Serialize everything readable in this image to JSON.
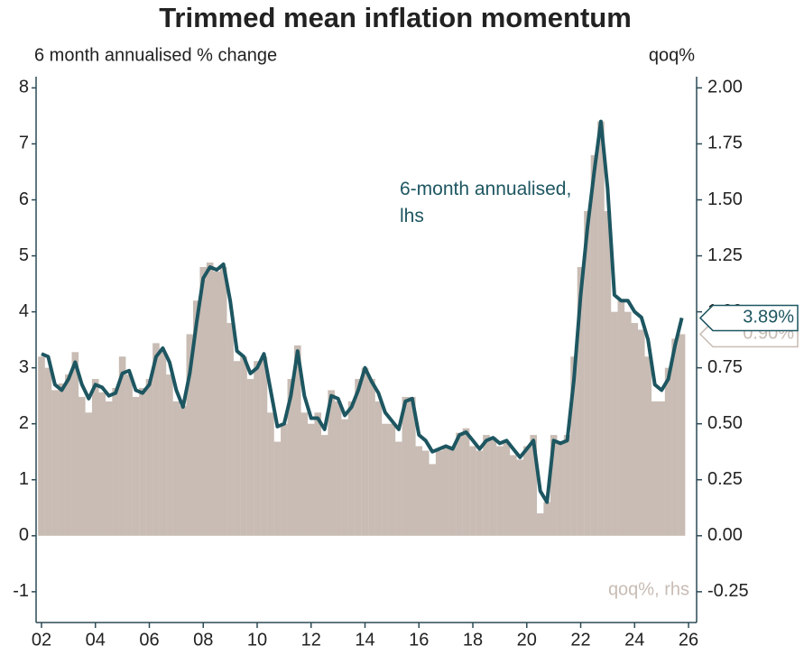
{
  "chart_data": {
    "type": "bar-line",
    "title": "Trimmed mean inflation momentum",
    "ylabel": "6 month annualised % change",
    "y2label": "qoq%",
    "x": [
      2002,
      2002.25,
      2002.5,
      2002.75,
      2003,
      2003.25,
      2003.5,
      2003.75,
      2004,
      2004.25,
      2004.5,
      2004.75,
      2005,
      2005.25,
      2005.5,
      2005.75,
      2006,
      2006.25,
      2006.5,
      2006.75,
      2007,
      2007.25,
      2007.5,
      2007.75,
      2008,
      2008.25,
      2008.5,
      2008.75,
      2009,
      2009.25,
      2009.5,
      2009.75,
      2010,
      2010.25,
      2010.5,
      2010.75,
      2011,
      2011.25,
      2011.5,
      2011.75,
      2012,
      2012.25,
      2012.5,
      2012.75,
      2013,
      2013.25,
      2013.5,
      2013.75,
      2014,
      2014.25,
      2014.5,
      2014.75,
      2015,
      2015.25,
      2015.5,
      2015.75,
      2016,
      2016.25,
      2016.5,
      2016.75,
      2017,
      2017.25,
      2017.5,
      2017.75,
      2018,
      2018.25,
      2018.5,
      2018.75,
      2019,
      2019.25,
      2019.5,
      2019.75,
      2020,
      2020.25,
      2020.5,
      2020.75,
      2021,
      2021.25,
      2021.5,
      2021.75,
      2022,
      2022.25,
      2022.5,
      2022.75,
      2023,
      2023.25,
      2023.5,
      2023.75,
      2024,
      2024.25,
      2024.5,
      2024.75,
      2025,
      2025.25,
      2025.5,
      2025.75
    ],
    "series": [
      {
        "name": "qoq%, rhs",
        "kind": "bar",
        "axis": "y2",
        "color": "#c8bcb4",
        "values": [
          0.8,
          0.75,
          0.65,
          0.68,
          0.72,
          0.82,
          0.62,
          0.55,
          0.7,
          0.64,
          0.6,
          0.66,
          0.8,
          0.72,
          0.62,
          0.66,
          0.7,
          0.86,
          0.82,
          0.72,
          0.6,
          0.58,
          0.9,
          1.05,
          1.2,
          1.22,
          1.18,
          1.2,
          0.95,
          0.78,
          0.8,
          0.7,
          0.78,
          0.8,
          0.55,
          0.42,
          0.5,
          0.7,
          0.85,
          0.55,
          0.5,
          0.55,
          0.45,
          0.65,
          0.6,
          0.52,
          0.6,
          0.7,
          0.75,
          0.7,
          0.6,
          0.5,
          0.5,
          0.42,
          0.62,
          0.62,
          0.4,
          0.38,
          0.32,
          0.38,
          0.4,
          0.4,
          0.46,
          0.48,
          0.4,
          0.38,
          0.45,
          0.44,
          0.4,
          0.42,
          0.36,
          0.34,
          0.4,
          0.45,
          0.1,
          0.15,
          0.45,
          0.42,
          0.45,
          0.8,
          1.2,
          1.45,
          1.7,
          1.85,
          1.45,
          1.0,
          1.05,
          1.0,
          0.95,
          0.92,
          0.8,
          0.6,
          0.6,
          0.75,
          0.88,
          0.9
        ],
        "end_label": {
          "value": 0.9,
          "label": "0.90%"
        }
      },
      {
        "name": "6-month annualised, lhs",
        "kind": "line",
        "axis": "y",
        "color": "#1d5661",
        "values": [
          3.25,
          3.2,
          2.7,
          2.6,
          2.8,
          3.1,
          2.7,
          2.45,
          2.7,
          2.65,
          2.5,
          2.55,
          2.9,
          2.95,
          2.6,
          2.55,
          2.7,
          3.2,
          3.35,
          3.1,
          2.6,
          2.3,
          2.9,
          3.8,
          4.6,
          4.8,
          4.75,
          4.85,
          4.2,
          3.3,
          3.2,
          2.9,
          3.0,
          3.25,
          2.6,
          1.95,
          2.0,
          2.5,
          3.3,
          2.5,
          2.1,
          2.1,
          1.9,
          2.5,
          2.45,
          2.15,
          2.3,
          2.6,
          3.0,
          2.75,
          2.55,
          2.2,
          2.05,
          1.9,
          2.4,
          2.45,
          1.8,
          1.7,
          1.5,
          1.55,
          1.6,
          1.55,
          1.8,
          1.85,
          1.7,
          1.55,
          1.7,
          1.75,
          1.65,
          1.7,
          1.55,
          1.4,
          1.55,
          1.7,
          0.8,
          0.6,
          1.7,
          1.65,
          1.7,
          2.8,
          4.3,
          5.5,
          6.5,
          7.4,
          6.2,
          4.3,
          4.2,
          4.2,
          4.0,
          3.9,
          3.5,
          2.7,
          2.6,
          2.8,
          3.4,
          3.89
        ],
        "end_label": {
          "value": 3.89,
          "label": "3.89%"
        }
      }
    ],
    "xlim": [
      2001.8,
      2026.3
    ],
    "xticks": [
      {
        "value": 2002,
        "label": "02"
      },
      {
        "value": 2004,
        "label": "04"
      },
      {
        "value": 2006,
        "label": "06"
      },
      {
        "value": 2008,
        "label": "08"
      },
      {
        "value": 2010,
        "label": "10"
      },
      {
        "value": 2012,
        "label": "12"
      },
      {
        "value": 2014,
        "label": "14"
      },
      {
        "value": 2016,
        "label": "16"
      },
      {
        "value": 2018,
        "label": "18"
      },
      {
        "value": 2020,
        "label": "20"
      },
      {
        "value": 2022,
        "label": "22"
      },
      {
        "value": 2024,
        "label": "24"
      },
      {
        "value": 2026,
        "label": "26"
      }
    ],
    "ylim": [
      -1.55,
      8.2
    ],
    "yticks": [
      -1,
      0,
      1,
      2,
      3,
      4,
      5,
      6,
      7,
      8
    ],
    "y2lim": [
      -0.3875,
      2.05
    ],
    "y2ticks": [
      {
        "value": -0.25,
        "label": "-0.25"
      },
      {
        "value": 0,
        "label": "0.00"
      },
      {
        "value": 0.25,
        "label": "0.25"
      },
      {
        "value": 0.5,
        "label": "0.50"
      },
      {
        "value": 0.75,
        "label": "0.75"
      },
      {
        "value": 1,
        "label": "1.00"
      },
      {
        "value": 1.25,
        "label": "1.25"
      },
      {
        "value": 1.5,
        "label": "1.50"
      },
      {
        "value": 1.75,
        "label": "1.75"
      },
      {
        "value": 2,
        "label": "2.00"
      }
    ]
  }
}
